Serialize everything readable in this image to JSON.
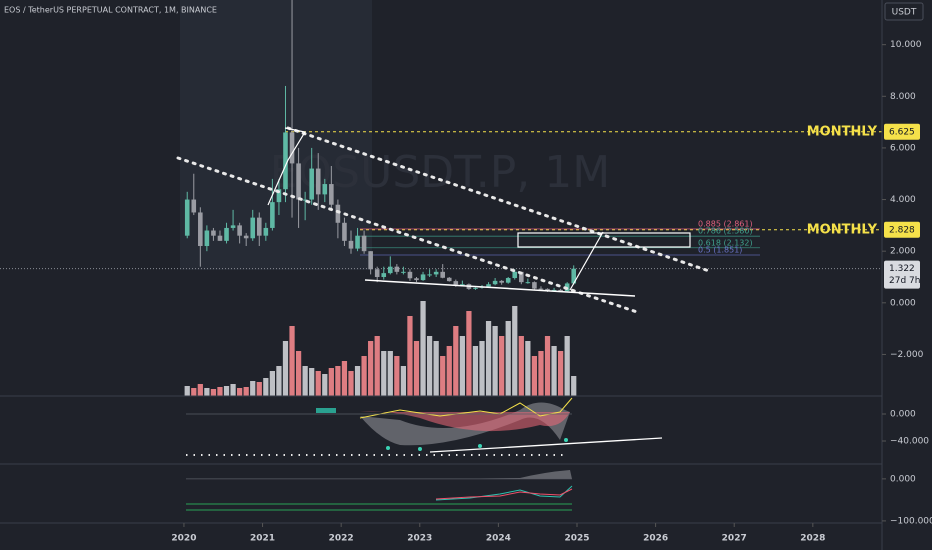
{
  "chart_data": {
    "type": "candlestick",
    "title": "EOS / TetherUS PERPETUAL CONTRACT, 1M, BINANCE",
    "watermark": "EOSUSDT.P, 1M",
    "currency": "USDT",
    "xlim": [
      2017.66,
      2028.88
    ],
    "xticks": [
      2020,
      2021,
      2022,
      2023,
      2024,
      2025,
      2026,
      2027,
      2028
    ],
    "ylim": [
      -3.61,
      11.73
    ],
    "yticks": [
      {
        "value": -2,
        "label": "−2.000"
      },
      {
        "value": 0,
        "label": "0.000"
      },
      {
        "value": 2,
        "label": "2.000"
      },
      {
        "value": 4,
        "label": "4.000"
      },
      {
        "value": 6,
        "label": "6.000"
      },
      {
        "value": 8,
        "label": "8.000"
      },
      {
        "value": 10,
        "label": "10.000"
      }
    ],
    "open": [
      2.6,
      4.0,
      3.5,
      2.2,
      2.8,
      2.6,
      2.4,
      2.9,
      3.0,
      2.6,
      2.5,
      3.3,
      2.6,
      2.9,
      3.9,
      4.4,
      6.6,
      5.4,
      4.0,
      4.0,
      5.2,
      4.2,
      4.6,
      3.8,
      3.1,
      2.4,
      2.1,
      2.6,
      2.0,
      1.3,
      1.0,
      1.15,
      1.4,
      1.2,
      1.2,
      0.95,
      0.88,
      1.1,
      1.1,
      1.2,
      0.97,
      0.84,
      0.7,
      0.72,
      0.54,
      0.58,
      0.63,
      0.72,
      0.85,
      0.78,
      0.96,
      1.2,
      0.8,
      0.8,
      0.55,
      0.54,
      0.48,
      0.5,
      0.45,
      0.75
    ],
    "high": [
      4.3,
      5.0,
      3.7,
      3.0,
      2.9,
      2.8,
      3.1,
      3.6,
      3.1,
      2.7,
      3.6,
      3.5,
      3.1,
      4.8,
      4.8,
      8.4,
      14.9,
      6.0,
      4.3,
      6.0,
      5.8,
      4.8,
      5.3,
      4.0,
      3.3,
      2.8,
      2.9,
      2.8,
      2.0,
      1.4,
      1.4,
      1.8,
      1.5,
      1.4,
      1.3,
      1.0,
      1.2,
      1.3,
      1.3,
      1.5,
      1.0,
      0.9,
      0.86,
      0.75,
      0.6,
      0.69,
      0.8,
      0.96,
      0.88,
      1.0,
      1.3,
      1.2,
      0.94,
      0.83,
      0.64,
      0.56,
      0.58,
      0.54,
      0.8,
      1.45
    ],
    "low": [
      2.5,
      3.4,
      1.4,
      2.0,
      2.4,
      2.4,
      2.3,
      2.8,
      2.3,
      2.2,
      2.4,
      2.2,
      2.4,
      2.8,
      3.4,
      3.9,
      3.3,
      2.9,
      3.2,
      3.8,
      3.6,
      3.9,
      3.6,
      2.5,
      2.2,
      1.9,
      2.0,
      1.9,
      1.1,
      0.8,
      0.9,
      1.1,
      1.1,
      1.1,
      0.85,
      0.8,
      0.85,
      1.0,
      1.0,
      0.95,
      0.82,
      0.62,
      0.66,
      0.5,
      0.5,
      0.55,
      0.62,
      0.68,
      0.7,
      0.74,
      0.9,
      0.72,
      0.74,
      0.52,
      0.46,
      0.42,
      0.44,
      0.43,
      0.43,
      0.7
    ],
    "close": [
      4.0,
      3.5,
      2.2,
      2.8,
      2.6,
      2.4,
      2.9,
      3.0,
      2.6,
      2.5,
      3.3,
      2.6,
      2.9,
      3.9,
      4.4,
      6.6,
      5.4,
      4.0,
      4.0,
      5.2,
      4.2,
      4.6,
      3.8,
      3.1,
      2.4,
      2.1,
      2.6,
      2.0,
      1.3,
      1.0,
      1.15,
      1.4,
      1.2,
      1.2,
      0.95,
      0.88,
      1.1,
      1.1,
      1.2,
      0.97,
      0.84,
      0.7,
      0.72,
      0.54,
      0.58,
      0.63,
      0.72,
      0.85,
      0.78,
      0.96,
      1.2,
      0.8,
      0.8,
      0.55,
      0.54,
      0.48,
      0.5,
      0.45,
      0.75,
      1.322
    ],
    "volume": [
      10,
      8,
      12,
      8,
      7,
      9,
      10,
      12,
      8,
      9,
      15,
      14,
      18,
      25,
      30,
      55,
      70,
      45,
      30,
      28,
      25,
      22,
      28,
      30,
      35,
      25,
      30,
      40,
      55,
      60,
      45,
      45,
      40,
      30,
      80,
      55,
      95,
      60,
      55,
      40,
      50,
      70,
      60,
      85,
      50,
      55,
      75,
      70,
      60,
      75,
      90,
      60,
      55,
      40,
      45,
      60,
      50,
      45,
      60,
      20
    ],
    "up_color": "#5fb9a5",
    "down_color": "#9a9ca3",
    "volume_up_color": "#cfd1d6",
    "volume_down_color": "#f3878c",
    "annotations": [
      {
        "text": "MONTHLY",
        "value": 6.625,
        "value_label": "6.625",
        "color": "#f5e14a"
      },
      {
        "text": "MONTHLY",
        "value": 2.828,
        "value_label": "2.828",
        "color": "#f5e14a"
      }
    ],
    "last_price": {
      "value": 1.322,
      "label": "1.322",
      "countdown": "27d 7h"
    },
    "fib_levels": [
      {
        "label": "0.885 (2.861)",
        "value": 2.861,
        "color": "#e0607e"
      },
      {
        "label": "0.786 (2.580)",
        "value": 2.58,
        "color": "#3fa08c"
      },
      {
        "label": "0.618 (2.132)",
        "value": 2.132,
        "color": "#3fa08c"
      },
      {
        "label": "0.5 (1.851)",
        "value": 1.851,
        "color": "#6a74c9"
      }
    ],
    "indicator_panes": [
      {
        "ylim": [
          -72.6,
          25.2
        ],
        "yticks": [
          {
            "value": 0,
            "label": "0.000"
          },
          {
            "value": -40,
            "label": "−40.000"
          }
        ]
      },
      {
        "ylim": [
          -105,
          33
        ],
        "yticks": [
          {
            "value": 0,
            "label": "0.000"
          },
          {
            "value": -100,
            "label": "−100.000"
          }
        ]
      }
    ]
  }
}
